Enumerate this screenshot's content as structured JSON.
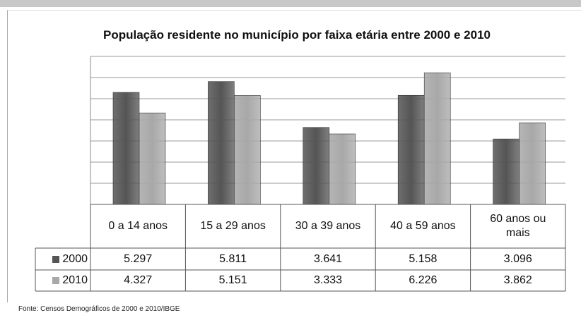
{
  "chart_data": {
    "type": "bar",
    "title": "População residente no município por faixa etária entre 2000 e 2010",
    "categories": [
      "0 a 14 anos",
      "15 a 29 anos",
      "30 a 39 anos",
      "40 a 59 anos",
      "60 anos ou mais"
    ],
    "series": [
      {
        "name": "2000",
        "color": "#555555",
        "values": [
          5297,
          5811,
          3641,
          5158,
          3096
        ],
        "value_labels": [
          "5.297",
          "5.811",
          "3.641",
          "5.158",
          "3.096"
        ]
      },
      {
        "name": "2010",
        "color": "#a8a8a8",
        "values": [
          4327,
          5151,
          3333,
          6226,
          3862
        ],
        "value_labels": [
          "4.327",
          "5.151",
          "3.333",
          "6.226",
          "3.862"
        ]
      }
    ],
    "ylim": [
      0,
      7000
    ],
    "yticks": [
      0,
      1000,
      2000,
      3000,
      4000,
      5000,
      6000,
      7000
    ],
    "grid": true,
    "source": "Fonte: Censos Demográficos de 2000 e 2010/IBGE"
  }
}
